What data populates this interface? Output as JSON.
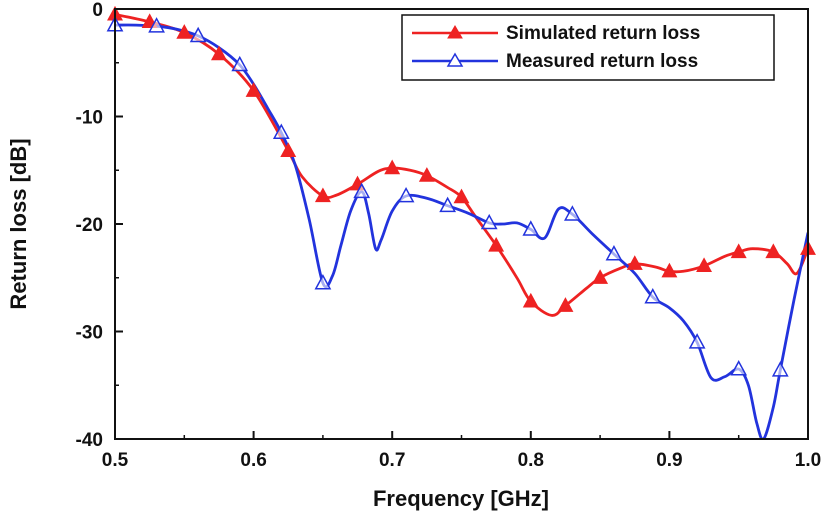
{
  "chart_data": {
    "type": "line",
    "title": "",
    "xlabel": "Frequency [GHz]",
    "ylabel": "Return loss [dB]",
    "xlim": [
      0.5,
      1.0
    ],
    "ylim": [
      -40,
      0
    ],
    "xticks": [
      0.5,
      0.6,
      0.7,
      0.8,
      0.9,
      1.0
    ],
    "xtick_labels": [
      "0.5",
      "0.6",
      "0.7",
      "0.8",
      "0.9",
      "1.0"
    ],
    "yticks": [
      0,
      -10,
      -20,
      -30,
      -40
    ],
    "ytick_labels": [
      "0",
      "-10",
      "-20",
      "-30",
      "-40"
    ],
    "grid": false,
    "legend_position": "top-right",
    "series": [
      {
        "name": "Simulated return loss",
        "color": "#ee2222",
        "marker": "filled-triangle",
        "line_points": [
          [
            0.5,
            -0.5
          ],
          [
            0.525,
            -1.2
          ],
          [
            0.55,
            -2.2
          ],
          [
            0.575,
            -4.2
          ],
          [
            0.6,
            -7.6
          ],
          [
            0.625,
            -13.2
          ],
          [
            0.635,
            -15.6
          ],
          [
            0.65,
            -17.4
          ],
          [
            0.66,
            -17.3
          ],
          [
            0.675,
            -16.3
          ],
          [
            0.69,
            -15.1
          ],
          [
            0.7,
            -14.8
          ],
          [
            0.713,
            -15.0
          ],
          [
            0.725,
            -15.5
          ],
          [
            0.74,
            -16.6
          ],
          [
            0.75,
            -17.5
          ],
          [
            0.76,
            -19.3
          ],
          [
            0.775,
            -22.0
          ],
          [
            0.79,
            -25.0
          ],
          [
            0.8,
            -27.2
          ],
          [
            0.815,
            -28.5
          ],
          [
            0.825,
            -27.6
          ],
          [
            0.84,
            -26.0
          ],
          [
            0.85,
            -25.0
          ],
          [
            0.865,
            -24.1
          ],
          [
            0.875,
            -23.7
          ],
          [
            0.89,
            -24.0
          ],
          [
            0.9,
            -24.4
          ],
          [
            0.91,
            -24.4
          ],
          [
            0.925,
            -23.9
          ],
          [
            0.94,
            -23.0
          ],
          [
            0.95,
            -22.6
          ],
          [
            0.96,
            -22.3
          ],
          [
            0.975,
            -22.6
          ],
          [
            0.985,
            -23.7
          ],
          [
            0.992,
            -24.6
          ],
          [
            1.0,
            -22.3
          ]
        ],
        "markers_x": [
          0.5,
          0.525,
          0.55,
          0.575,
          0.6,
          0.625,
          0.65,
          0.675,
          0.7,
          0.725,
          0.75,
          0.775,
          0.8,
          0.825,
          0.85,
          0.875,
          0.9,
          0.925,
          0.95,
          0.975,
          1.0
        ],
        "markers_y": [
          -0.5,
          -1.2,
          -2.2,
          -4.2,
          -7.6,
          -13.2,
          -17.4,
          -16.3,
          -14.8,
          -15.5,
          -17.5,
          -22.0,
          -27.2,
          -27.6,
          -25.0,
          -23.7,
          -24.4,
          -23.9,
          -22.6,
          -22.6,
          -22.3
        ]
      },
      {
        "name": "Measured return loss",
        "color": "#2233dd",
        "marker": "hollow-triangle",
        "line_points": [
          [
            0.5,
            -1.5
          ],
          [
            0.515,
            -1.5
          ],
          [
            0.53,
            -1.6
          ],
          [
            0.545,
            -1.9
          ],
          [
            0.56,
            -2.5
          ],
          [
            0.575,
            -3.6
          ],
          [
            0.59,
            -5.2
          ],
          [
            0.6,
            -7.0
          ],
          [
            0.61,
            -9.2
          ],
          [
            0.62,
            -11.5
          ],
          [
            0.63,
            -14.5
          ],
          [
            0.64,
            -19.5
          ],
          [
            0.65,
            -25.5
          ],
          [
            0.657,
            -24.8
          ],
          [
            0.663,
            -22.0
          ],
          [
            0.67,
            -18.8
          ],
          [
            0.678,
            -17.0
          ],
          [
            0.683,
            -19.0
          ],
          [
            0.688,
            -22.3
          ],
          [
            0.692,
            -21.5
          ],
          [
            0.7,
            -18.8
          ],
          [
            0.71,
            -17.4
          ],
          [
            0.725,
            -17.6
          ],
          [
            0.74,
            -18.3
          ],
          [
            0.755,
            -19.0
          ],
          [
            0.77,
            -19.9
          ],
          [
            0.78,
            -20.0
          ],
          [
            0.79,
            -19.9
          ],
          [
            0.8,
            -20.5
          ],
          [
            0.81,
            -21.3
          ],
          [
            0.82,
            -18.6
          ],
          [
            0.83,
            -19.1
          ],
          [
            0.845,
            -21.0
          ],
          [
            0.86,
            -22.8
          ],
          [
            0.875,
            -24.6
          ],
          [
            0.888,
            -26.8
          ],
          [
            0.9,
            -27.8
          ],
          [
            0.91,
            -29.0
          ],
          [
            0.92,
            -31.0
          ],
          [
            0.93,
            -34.3
          ],
          [
            0.94,
            -34.2
          ],
          [
            0.95,
            -33.5
          ],
          [
            0.957,
            -35.0
          ],
          [
            0.963,
            -38.5
          ],
          [
            0.968,
            -40.0
          ],
          [
            0.975,
            -37.0
          ],
          [
            0.98,
            -33.6
          ],
          [
            0.99,
            -27.0
          ],
          [
            1.0,
            -20.8
          ]
        ],
        "markers_x": [
          0.5,
          0.53,
          0.56,
          0.59,
          0.62,
          0.65,
          0.678,
          0.71,
          0.74,
          0.77,
          0.8,
          0.83,
          0.86,
          0.888,
          0.92,
          0.95,
          0.98
        ],
        "markers_y": [
          -1.5,
          -1.6,
          -2.5,
          -5.2,
          -11.5,
          -25.5,
          -17.0,
          -17.4,
          -18.3,
          -19.9,
          -20.5,
          -19.1,
          -22.8,
          -26.8,
          -31.0,
          -33.5,
          -33.6
        ]
      }
    ]
  }
}
